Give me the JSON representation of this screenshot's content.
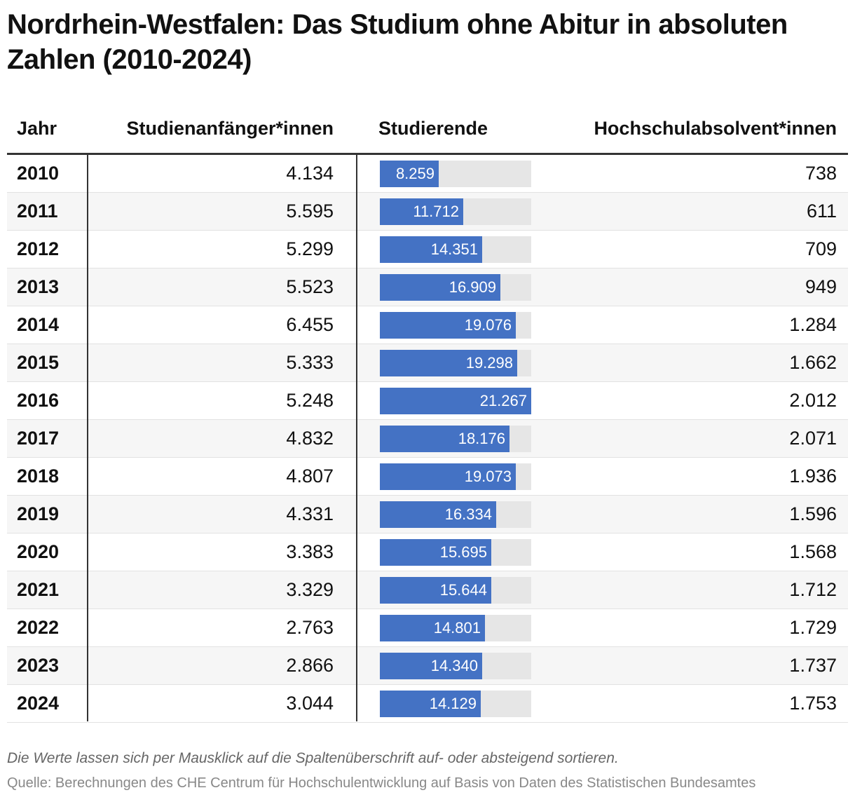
{
  "chart_data": {
    "type": "table",
    "title": "Nordrhein-Westfalen: Das Studium ohne Abitur in absoluten Zahlen (2010-2024)",
    "columns": [
      "Jahr",
      "Studienanfänger*innen",
      "Studierende",
      "Hochschulabsolvent*innen"
    ],
    "bar_column": "Studierende",
    "bar_max": 21267,
    "rows": [
      {
        "year": "2010",
        "anf": "4.134",
        "stud": "8.259",
        "stud_value": 8259,
        "abs": "738"
      },
      {
        "year": "2011",
        "anf": "5.595",
        "stud": "11.712",
        "stud_value": 11712,
        "abs": "611"
      },
      {
        "year": "2012",
        "anf": "5.299",
        "stud": "14.351",
        "stud_value": 14351,
        "abs": "709"
      },
      {
        "year": "2013",
        "anf": "5.523",
        "stud": "16.909",
        "stud_value": 16909,
        "abs": "949"
      },
      {
        "year": "2014",
        "anf": "6.455",
        "stud": "19.076",
        "stud_value": 19076,
        "abs": "1.284"
      },
      {
        "year": "2015",
        "anf": "5.333",
        "stud": "19.298",
        "stud_value": 19298,
        "abs": "1.662"
      },
      {
        "year": "2016",
        "anf": "5.248",
        "stud": "21.267",
        "stud_value": 21267,
        "abs": "2.012"
      },
      {
        "year": "2017",
        "anf": "4.832",
        "stud": "18.176",
        "stud_value": 18176,
        "abs": "2.071"
      },
      {
        "year": "2018",
        "anf": "4.807",
        "stud": "19.073",
        "stud_value": 19073,
        "abs": "1.936"
      },
      {
        "year": "2019",
        "anf": "4.331",
        "stud": "16.334",
        "stud_value": 16334,
        "abs": "1.596"
      },
      {
        "year": "2020",
        "anf": "3.383",
        "stud": "15.695",
        "stud_value": 15695,
        "abs": "1.568"
      },
      {
        "year": "2021",
        "anf": "3.329",
        "stud": "15.644",
        "stud_value": 15644,
        "abs": "1.712"
      },
      {
        "year": "2022",
        "anf": "2.763",
        "stud": "14.801",
        "stud_value": 14801,
        "abs": "1.729"
      },
      {
        "year": "2023",
        "anf": "2.866",
        "stud": "14.340",
        "stud_value": 14340,
        "abs": "1.737"
      },
      {
        "year": "2024",
        "anf": "3.044",
        "stud": "14.129",
        "stud_value": 14129,
        "abs": "1.753"
      }
    ],
    "note": "Die Werte lassen sich per Mausklick auf die Spaltenüberschrift auf- oder absteigend sortieren.",
    "source": "Quelle: Berechnungen des CHE Centrum für Hochschulentwicklung auf Basis von Daten des Statistischen Bundesamtes"
  },
  "colors": {
    "bar": "#4472c4",
    "bar_track": "#e6e6e6",
    "row_alt": "#f6f6f6"
  }
}
